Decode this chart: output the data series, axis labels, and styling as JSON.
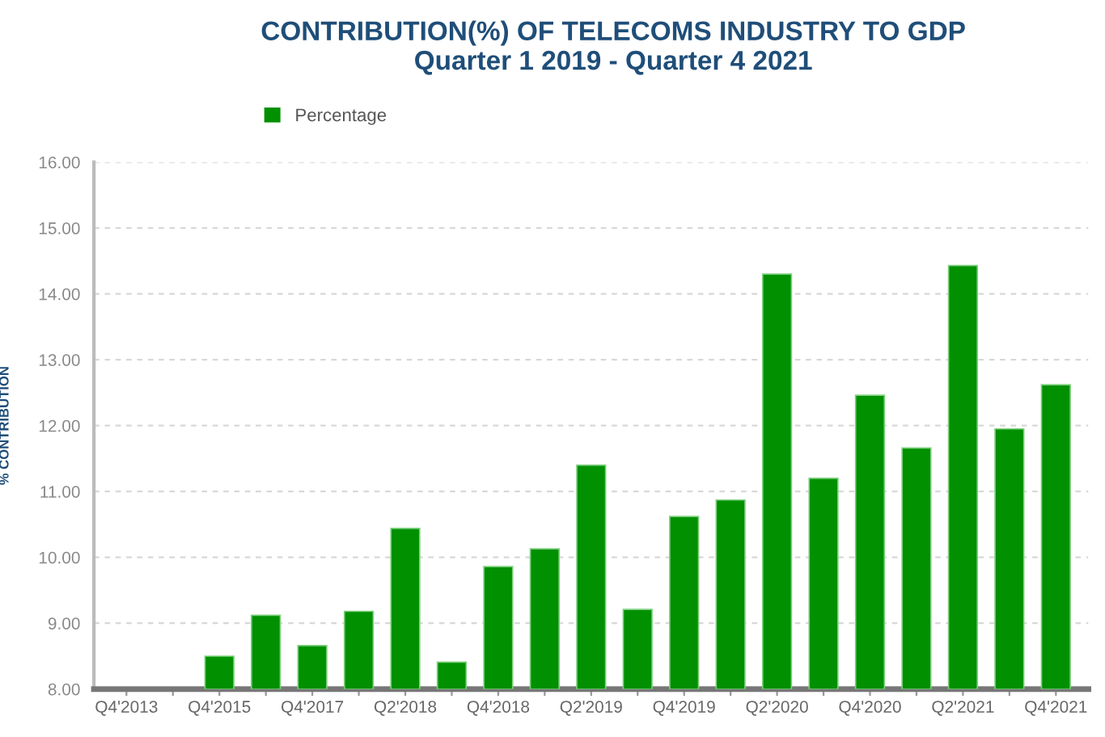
{
  "chart_data": {
    "type": "bar",
    "title": "CONTRIBUTION(%) OF TELECOMS INDUSTRY TO GDP",
    "subtitle": "Quarter 1 2019 - Quarter 4 2021",
    "ylabel": "% CONTRIBUTION",
    "categories": [
      "Q4'2013",
      null,
      "Q4'2015",
      null,
      "Q4'2017",
      null,
      "Q2'2018",
      null,
      "Q4'2018",
      null,
      "Q2'2019",
      null,
      "Q4'2019",
      null,
      "Q2'2020",
      null,
      "Q4'2020",
      null,
      "Q2'2021",
      null,
      "Q4'2021"
    ],
    "series": [
      {
        "name": "Percentage",
        "color": "#009000",
        "values": [
          null,
          null,
          8.5,
          9.12,
          8.66,
          9.18,
          10.44,
          8.41,
          9.86,
          10.13,
          11.4,
          9.21,
          10.62,
          10.87,
          14.3,
          11.2,
          12.46,
          11.66,
          14.43,
          11.95,
          12.62
        ]
      }
    ],
    "ylim": [
      8,
      16
    ],
    "yticks": [
      {
        "value": 8,
        "label": "8.00"
      },
      {
        "value": 9,
        "label": "9.00"
      },
      {
        "value": 10,
        "label": "10.00"
      },
      {
        "value": 11,
        "label": "11.00"
      },
      {
        "value": 12,
        "label": "12.00"
      },
      {
        "value": 13,
        "label": "13.00"
      },
      {
        "value": 14,
        "label": "14.00"
      },
      {
        "value": 15,
        "label": "15.00"
      },
      {
        "value": 16,
        "label": "16.00"
      }
    ],
    "grid": "y",
    "legend": "top"
  }
}
